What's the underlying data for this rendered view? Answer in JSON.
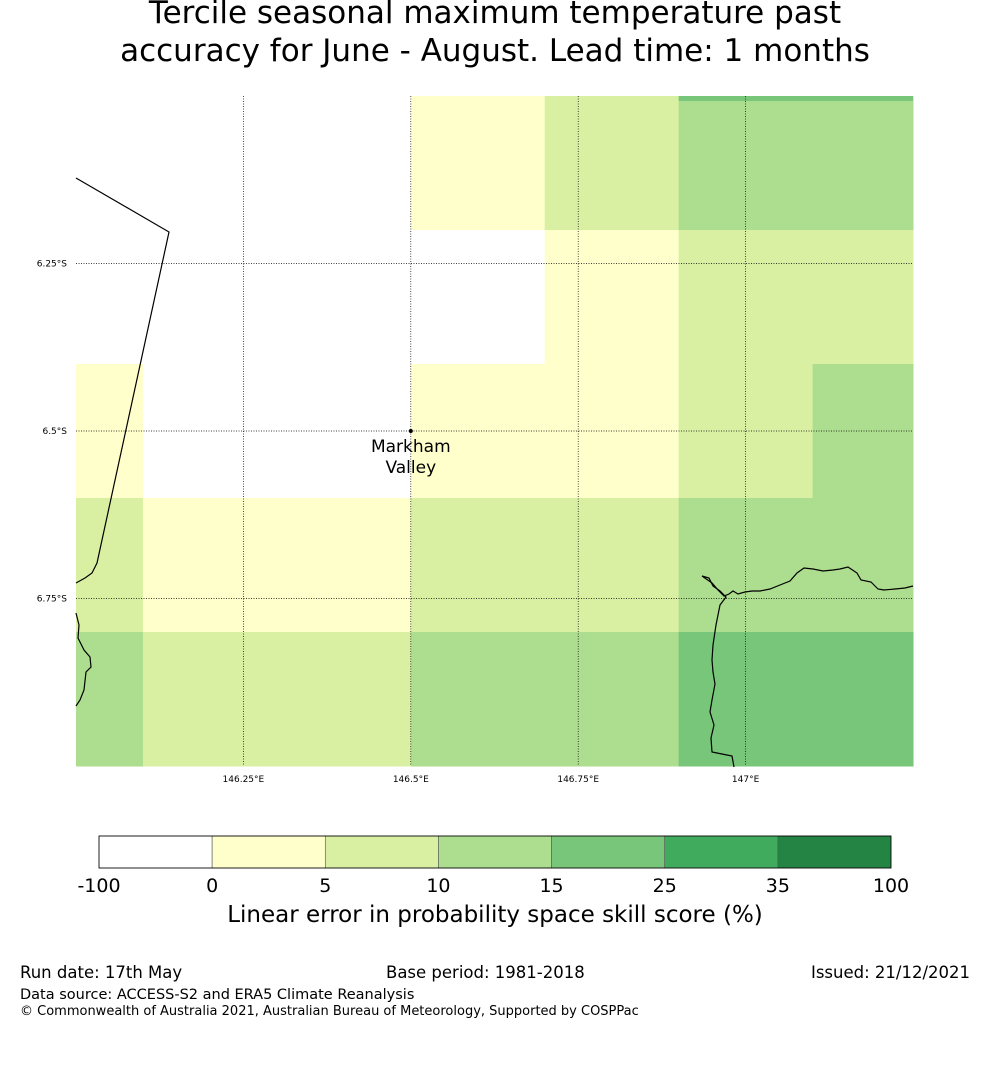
{
  "title": {
    "line1": "Tercile seasonal maximum temperature past",
    "line2": "accuracy for June - August. Lead time: 1 months"
  },
  "map": {
    "lon_ticks": [
      {
        "value": 146.25,
        "label": "146.25°E"
      },
      {
        "value": 146.5,
        "label": "146.5°E"
      },
      {
        "value": 146.75,
        "label": "146.75°E"
      },
      {
        "value": 147.0,
        "label": "147°E"
      }
    ],
    "lat_ticks": [
      {
        "value": -6.25,
        "label": "6.25°S"
      },
      {
        "value": -6.5,
        "label": "6.5°S"
      },
      {
        "value": -6.75,
        "label": "6.75°S"
      }
    ],
    "location": {
      "name_line1": "Markham",
      "name_line2": "Valley",
      "lon": 146.5,
      "lat": -6.5
    },
    "grid": {
      "lon_edges": [
        146.0,
        146.1,
        146.5,
        146.7,
        146.9,
        147.1,
        147.25
      ],
      "lat_edges": [
        -6.0,
        -6.2,
        -6.4,
        -6.6,
        -6.8,
        -7.0
      ],
      "categories": [
        [
          0,
          0,
          1,
          2,
          3,
          3
        ],
        [
          0,
          0,
          0,
          1,
          2,
          2
        ],
        [
          1,
          0,
          1,
          1,
          2,
          3
        ],
        [
          2,
          1,
          2,
          2,
          3,
          3
        ],
        [
          3,
          2,
          3,
          3,
          4,
          4
        ]
      ],
      "top_strip": {
        "lon_range": [
          146.9,
          147.25
        ],
        "category": 4
      }
    }
  },
  "colorbar": {
    "labels": [
      "-100",
      "0",
      "5",
      "10",
      "15",
      "25",
      "35",
      "100"
    ],
    "colors": [
      "#ffffff",
      "#ffffcc",
      "#d9f0a3",
      "#addd8e",
      "#78c679",
      "#41ab5d",
      "#238443"
    ],
    "title": "Linear error in probability space skill score (%)"
  },
  "footer": {
    "run_date": "Run date: 17th May",
    "base_period": "Base period: 1981-2018",
    "issued": "Issued: 21/12/2021",
    "data_source": "Data source: ACCESS-S2 and ERA5 Climate Reanalysis",
    "copyright": "© Commonwealth of Australia 2021, Australian Bureau of Meteorology, Supported by COSPPac"
  }
}
